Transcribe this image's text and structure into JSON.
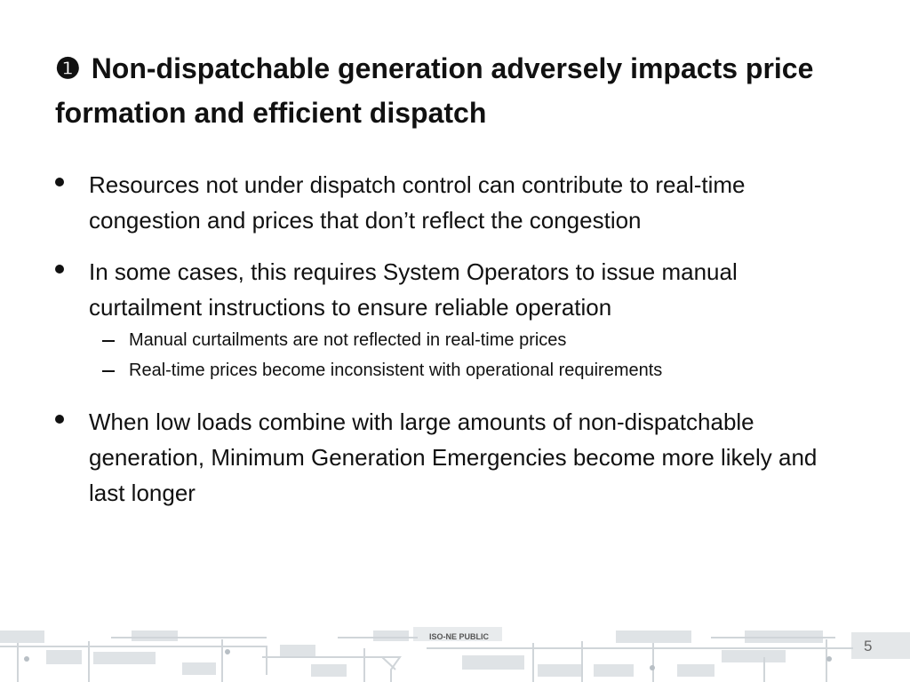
{
  "slide": {
    "title": {
      "marker": "❶",
      "text": "Non-dispatchable generation adversely impacts price formation and efficient dispatch"
    },
    "bullets": [
      {
        "text": "Resources not under dispatch control can contribute to real-time congestion and prices that don’t reflect the congestion",
        "subs": []
      },
      {
        "text": "In some cases, this requires System Operators to issue manual curtailment instructions to ensure reliable operation",
        "subs": [
          "Manual curtailments are not reflected in real-time prices",
          "Real-time prices become inconsistent with operational requirements"
        ]
      },
      {
        "text": "When low loads combine with large amounts of non-dispatchable generation, Minimum Generation Emergencies become more likely and last longer",
        "subs": []
      }
    ],
    "footer": {
      "label": "ISO-NE PUBLIC",
      "page_number": "5"
    }
  }
}
